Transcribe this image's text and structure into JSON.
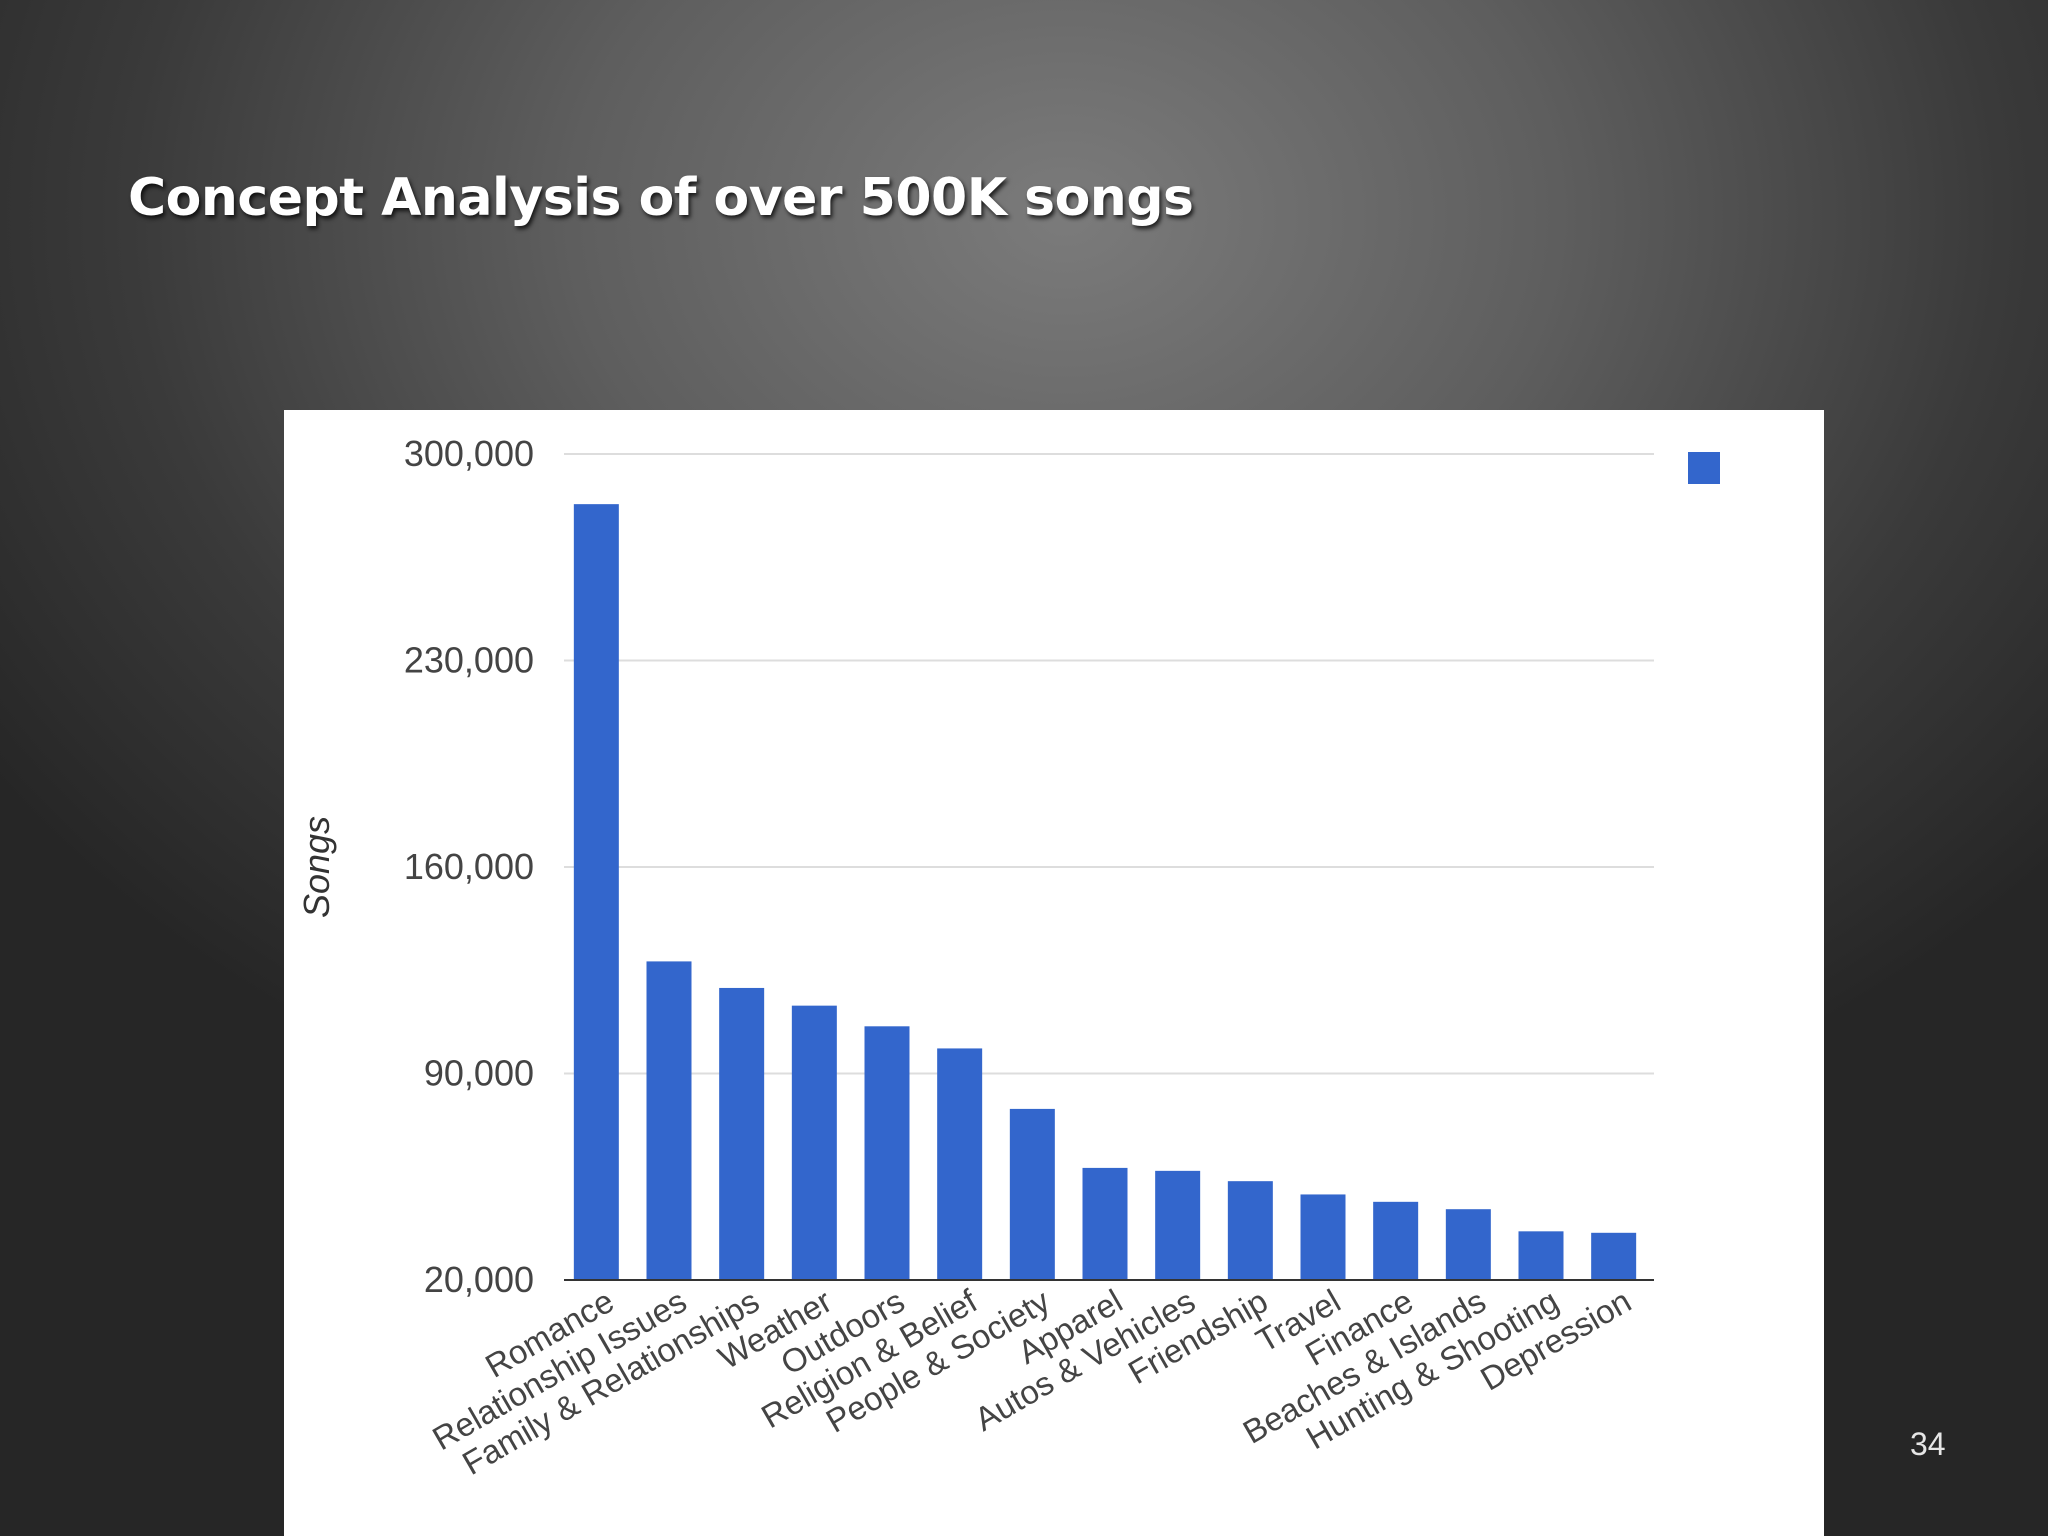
{
  "slide": {
    "title": "Concept Analysis of over 500K songs",
    "page_number": "34"
  },
  "colors": {
    "bar": "#3366cc",
    "gridline": "#dddddd",
    "axis": "#333333",
    "text": "#444444"
  },
  "chart_data": {
    "type": "bar",
    "title": "",
    "xlabel": "",
    "ylabel": "Songs",
    "ylim": [
      20000,
      300000
    ],
    "yticks": [
      20000,
      90000,
      160000,
      230000,
      300000
    ],
    "ytick_labels": [
      "20,000",
      "90,000",
      "160,000",
      "230,000",
      "300,000"
    ],
    "grid": true,
    "legend": {
      "position": "top-right",
      "entries": [
        ""
      ]
    },
    "categories": [
      "Romance",
      "Relationship Issues",
      "Family & Relationships",
      "Weather",
      "Outdoors",
      "Religion & Belief",
      "People & Society",
      "Apparel",
      "Autos & Vehicles",
      "Friendship",
      "Travel",
      "Finance",
      "Beaches & Islands",
      "Hunting & Shooting",
      "Depression"
    ],
    "series": [
      {
        "values": [
          283000,
          128000,
          119000,
          113000,
          106000,
          98500,
          78000,
          58000,
          57000,
          53500,
          49000,
          46500,
          44000,
          36500,
          36000
        ]
      }
    ]
  }
}
